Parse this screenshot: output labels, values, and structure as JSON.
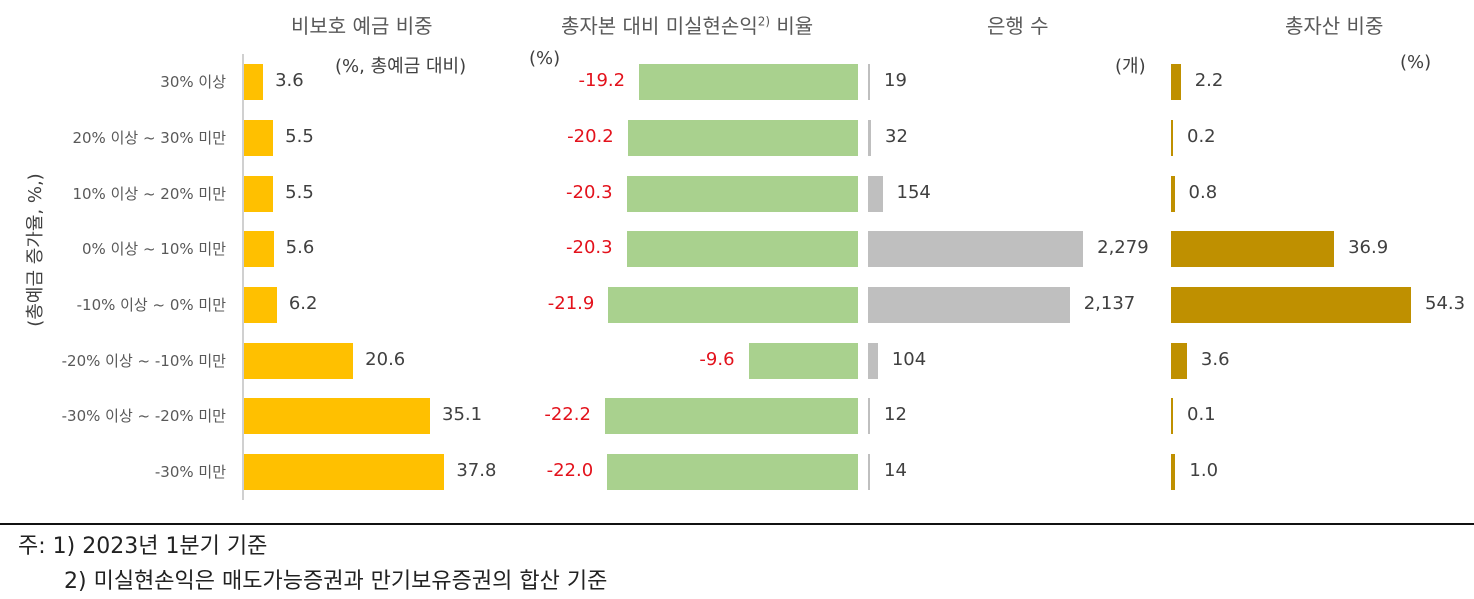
{
  "chart_data": [
    {
      "type": "bar",
      "orientation": "horizontal",
      "title": "비보호 예금 비중",
      "unit": "(%, 총예금 대비)",
      "ylabel": "(총예금 증가율, %,)",
      "categories": [
        "30% 이상",
        "20% 이상 ~ 30% 미만",
        "10% 이상 ~ 20% 미만",
        "0% 이상 ~ 10% 미만",
        "-10% 이상 ~ 0% 미만",
        "-20% 이상 ~ -10% 미만",
        "-30% 이상 ~ -20% 미만",
        "-30% 미만"
      ],
      "values": [
        3.6,
        5.5,
        5.5,
        5.6,
        6.2,
        20.6,
        35.1,
        37.8
      ],
      "labels": [
        "3.6",
        "5.5",
        "5.5",
        "5.6",
        "6.2",
        "20.6",
        "35.1",
        "37.8"
      ],
      "color": "#FFC000"
    },
    {
      "type": "bar",
      "orientation": "horizontal",
      "title": "총자본 대비 미실현손익2) 비율",
      "unit": "(%)",
      "categories": [
        "30% 이상",
        "20% 이상 ~ 30% 미만",
        "10% 이상 ~ 20% 미만",
        "0% 이상 ~ 10% 미만",
        "-10% 이상 ~ 0% 미만",
        "-20% 이상 ~ -10% 미만",
        "-30% 이상 ~ -20% 미만",
        "-30% 미만"
      ],
      "values": [
        -19.2,
        -20.2,
        -20.3,
        -20.3,
        -21.9,
        -9.6,
        -22.2,
        -22.0
      ],
      "labels": [
        "-19.2",
        "-20.2",
        "-20.3",
        "-20.3",
        "-21.9",
        "-9.6",
        "-22.2",
        "-22.0"
      ],
      "color": "#A9D18E",
      "label_color": "#E3121C"
    },
    {
      "type": "bar",
      "orientation": "horizontal",
      "title": "은행 수",
      "unit": "(개)",
      "categories": [
        "30% 이상",
        "20% 이상 ~ 30% 미만",
        "10% 이상 ~ 20% 미만",
        "0% 이상 ~ 10% 미만",
        "-10% 이상 ~ 0% 미만",
        "-20% 이상 ~ -10% 미만",
        "-30% 이상 ~ -20% 미만",
        "-30% 미만"
      ],
      "values": [
        19,
        32,
        154,
        2279,
        2137,
        104,
        12,
        14
      ],
      "labels": [
        "19",
        "32",
        "154",
        "2,279",
        "2,137",
        "104",
        "12",
        "14"
      ],
      "color": "#BFBFBF"
    },
    {
      "type": "bar",
      "orientation": "horizontal",
      "title": "총자산 비중",
      "unit": "(%)",
      "categories": [
        "30% 이상",
        "20% 이상 ~ 30% 미만",
        "10% 이상 ~ 20% 미만",
        "0% 이상 ~ 10% 미만",
        "-10% 이상 ~ 0% 미만",
        "-20% 이상 ~ -10% 미만",
        "-30% 이상 ~ -20% 미만",
        "-30% 미만"
      ],
      "values": [
        2.2,
        0.2,
        0.8,
        36.9,
        54.3,
        3.6,
        0.1,
        1.0
      ],
      "labels": [
        "2.2",
        "0.2",
        "0.8",
        "36.9",
        "54.3",
        "3.6",
        "0.1",
        "1.0"
      ],
      "color": "#BF9000"
    }
  ],
  "panels": {
    "p1": {
      "title": "비보호 예금 비중",
      "unit": "(%, 총예금 대비)"
    },
    "p2": {
      "title_main": "총자본 대비 미실현손익",
      "title_sup": "2)",
      "title_end": " 비율",
      "unit": "(%)"
    },
    "p3": {
      "title": "은행 수",
      "unit": "(개)"
    },
    "p4": {
      "title": "총자산 비중",
      "unit": "(%)"
    }
  },
  "ylabel": "(총예금 증가율, %,)",
  "notes": {
    "line1": "주: 1) 2023년 1분기 기준",
    "line2": "2) 미실현손익은 매도가능증권과 만기보유증권의 합산 기준"
  }
}
